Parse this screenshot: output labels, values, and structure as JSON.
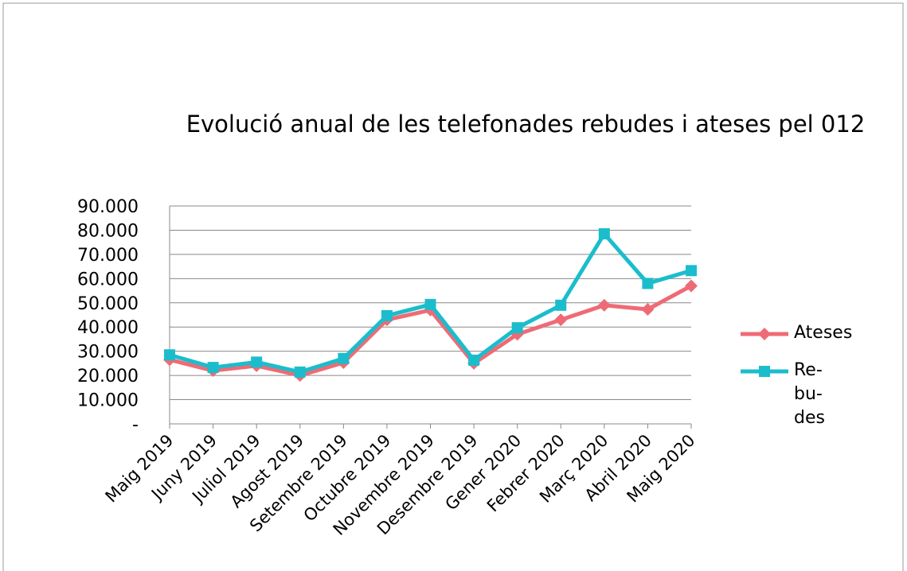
{
  "chart_data": {
    "type": "line",
    "title": "Evolució anual de les telefonades rebudes i ateses pel 012",
    "categories": [
      "Maig 2019",
      "Juny 2019",
      "Juliol 2019",
      "Agost 2019",
      "Setembre 2019",
      "Octubre 2019",
      "Novembre 2019",
      "Desembre 2019",
      "Gener 2020",
      "Febrer 2020",
      "Març 2020",
      "Abril 2020",
      "Maig 2020"
    ],
    "series": [
      {
        "name": "Ateses",
        "color": "#ee6b75",
        "marker": "diamond",
        "values": [
          26500,
          22000,
          24000,
          20000,
          25300,
          43000,
          47000,
          25000,
          37000,
          43000,
          49000,
          47300,
          57000
        ]
      },
      {
        "name": "Re- bu- des",
        "color": "#1bbdcc",
        "marker": "square",
        "values": [
          28500,
          23300,
          25500,
          21400,
          27000,
          44700,
          49300,
          26300,
          39700,
          49000,
          78500,
          58000,
          63300
        ]
      }
    ],
    "ylim": [
      0,
      90000
    ],
    "yticks": [
      {
        "value": 0,
        "label": "-"
      },
      {
        "value": 10000,
        "label": "10.000"
      },
      {
        "value": 20000,
        "label": "20.000"
      },
      {
        "value": 30000,
        "label": "30.000"
      },
      {
        "value": 40000,
        "label": "40.000"
      },
      {
        "value": 50000,
        "label": "50.000"
      },
      {
        "value": 60000,
        "label": "60.000"
      },
      {
        "value": 70000,
        "label": "70.000"
      },
      {
        "value": 80000,
        "label": "80.000"
      },
      {
        "value": 90000,
        "label": "90.000"
      }
    ],
    "grid": true,
    "legend": "right"
  }
}
